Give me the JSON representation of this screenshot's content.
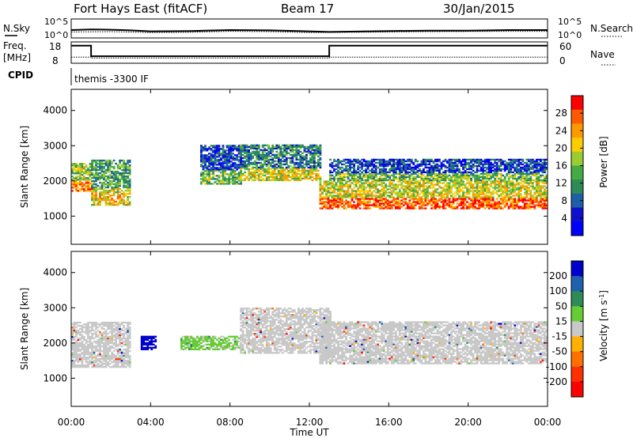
{
  "header": {
    "title": "Fort Hays East (fitACF)",
    "beam": "Beam 17",
    "date": "30/Jan/2015"
  },
  "top_panels": {
    "noise": {
      "left_label": "N.Sky",
      "right_label": "N.Search",
      "ticks_left": [
        "10^5",
        "10^0"
      ],
      "ticks_right": [
        "10^5",
        "10^0"
      ]
    },
    "freq": {
      "left_label_1": "Freq.",
      "left_label_2": "[MHz]",
      "right_label": "Nave",
      "ticks_left": [
        "18",
        "8"
      ],
      "ticks_right": [
        "60",
        "0"
      ]
    },
    "cpid": {
      "label": "CPID",
      "value": "themis -3300 IF"
    }
  },
  "power_panel": {
    "ylabel": "Slant Range [km]",
    "yticks": [
      "4000",
      "3000",
      "2000",
      "1000"
    ],
    "colorbar_label": "Power [dB]",
    "colorbar_ticks": [
      "28",
      "24",
      "20",
      "16",
      "12",
      "8",
      "4"
    ],
    "colorbar_colors": [
      "#ff0000",
      "#ff5a00",
      "#ff9900",
      "#ffcc00",
      "#9acd32",
      "#44aa44",
      "#2e8b57",
      "#1e5fa8",
      "#1010cc",
      "#0000ff"
    ]
  },
  "velocity_panel": {
    "ylabel": "Slant Range [km]",
    "yticks": [
      "4000",
      "3000",
      "2000",
      "1000"
    ],
    "colorbar_label": "Velocity [m s",
    "colorbar_label_sup": "-1",
    "colorbar_label_end": "]",
    "colorbar_ticks": [
      "200",
      "100",
      "50",
      "15",
      "-15",
      "-50",
      "-100",
      "-200"
    ],
    "colorbar_colors": [
      "#0000cc",
      "#2060b0",
      "#2e8b57",
      "#66cc33",
      "#c8c8c8",
      "#ffb000",
      "#ff7000",
      "#ff3000",
      "#ff0000"
    ],
    "ground_scatter_color": "#c8c8c8"
  },
  "xaxis": {
    "label": "Time UT",
    "ticks": [
      "00:00",
      "04:00",
      "08:00",
      "12:00",
      "16:00",
      "20:00",
      "00:00"
    ]
  },
  "chart_data": [
    {
      "type": "line",
      "name": "noise",
      "x_unit": "hours UT",
      "series": [
        {
          "name": "N.Sky",
          "points": [
            [
              0,
              2.0
            ],
            [
              1,
              2.2
            ],
            [
              2,
              2.1
            ],
            [
              3,
              1.9
            ],
            [
              4,
              1.6
            ],
            [
              6,
              1.7
            ],
            [
              8,
              2.0
            ],
            [
              10,
              1.9
            ],
            [
              12,
              1.6
            ],
            [
              13,
              1.4
            ],
            [
              16,
              1.7
            ],
            [
              18,
              1.8
            ],
            [
              20,
              1.8
            ],
            [
              22,
              2.0
            ],
            [
              24,
              2.0
            ]
          ]
        },
        {
          "name": "N.Search",
          "points": [
            [
              0,
              1.4
            ],
            [
              2,
              1.5
            ],
            [
              4,
              1.2
            ],
            [
              6,
              1.3
            ],
            [
              8,
              1.6
            ],
            [
              10,
              1.5
            ],
            [
              12,
              1.2
            ],
            [
              14,
              1.3
            ],
            [
              18,
              1.5
            ],
            [
              22,
              1.6
            ],
            [
              24,
              1.6
            ]
          ]
        }
      ]
    },
    {
      "type": "line",
      "name": "frequency",
      "x_unit": "hours UT",
      "series": [
        {
          "name": "Freq.",
          "points": [
            [
              0,
              16.8
            ],
            [
              1.0,
              16.8
            ],
            [
              1.0,
              11.0
            ],
            [
              13.0,
              11.0
            ],
            [
              13.0,
              16.8
            ],
            [
              24,
              16.8
            ]
          ]
        },
        {
          "name": "Nave",
          "points": [
            [
              0,
              15
            ],
            [
              1.0,
              15
            ],
            [
              1.0,
              12
            ],
            [
              13.0,
              12
            ],
            [
              13.0,
              15
            ],
            [
              24,
              15
            ]
          ]
        }
      ]
    },
    {
      "type": "heatmap",
      "name": "power",
      "x_unit": "hours UT",
      "y_unit": "km",
      "xlim": [
        0,
        24
      ],
      "ylim": [
        200,
        4600
      ],
      "zlim": [
        0,
        30
      ],
      "bands": [
        {
          "t0": 0.0,
          "t1": 1.0,
          "r0": 1700,
          "r1": 2500,
          "level": 20
        },
        {
          "t0": 1.0,
          "t1": 3.0,
          "r0": 1300,
          "r1": 2600,
          "level": 16
        },
        {
          "t0": 6.5,
          "t1": 8.5,
          "r0": 1900,
          "r1": 3000,
          "level": 10
        },
        {
          "t0": 8.5,
          "t1": 12.5,
          "r0": 2000,
          "r1": 3000,
          "level": 14
        },
        {
          "t0": 12.5,
          "t1": 24.0,
          "r0": 1200,
          "r1": 2000,
          "level": 22
        },
        {
          "t0": 13.0,
          "t1": 24.0,
          "r0": 2000,
          "r1": 2600,
          "level": 10
        }
      ]
    },
    {
      "type": "heatmap",
      "name": "velocity",
      "x_unit": "hours UT",
      "y_unit": "km",
      "xlim": [
        0,
        24
      ],
      "ylim": [
        200,
        4600
      ],
      "zlim": [
        -200,
        200
      ],
      "bands": [
        {
          "t0": 0.0,
          "t1": 3.0,
          "r0": 1300,
          "r1": 2600,
          "level": 0,
          "ground": true
        },
        {
          "t0": 3.5,
          "t1": 4.2,
          "r0": 1800,
          "r1": 2200,
          "level": 200
        },
        {
          "t0": 5.5,
          "t1": 8.5,
          "r0": 1800,
          "r1": 2200,
          "level": 40
        },
        {
          "t0": 8.5,
          "t1": 13.0,
          "r0": 1700,
          "r1": 3000,
          "level": 0,
          "ground": true
        },
        {
          "t0": 12.5,
          "t1": 24.0,
          "r0": 1400,
          "r1": 2600,
          "level": 0,
          "ground": true
        }
      ]
    }
  ]
}
